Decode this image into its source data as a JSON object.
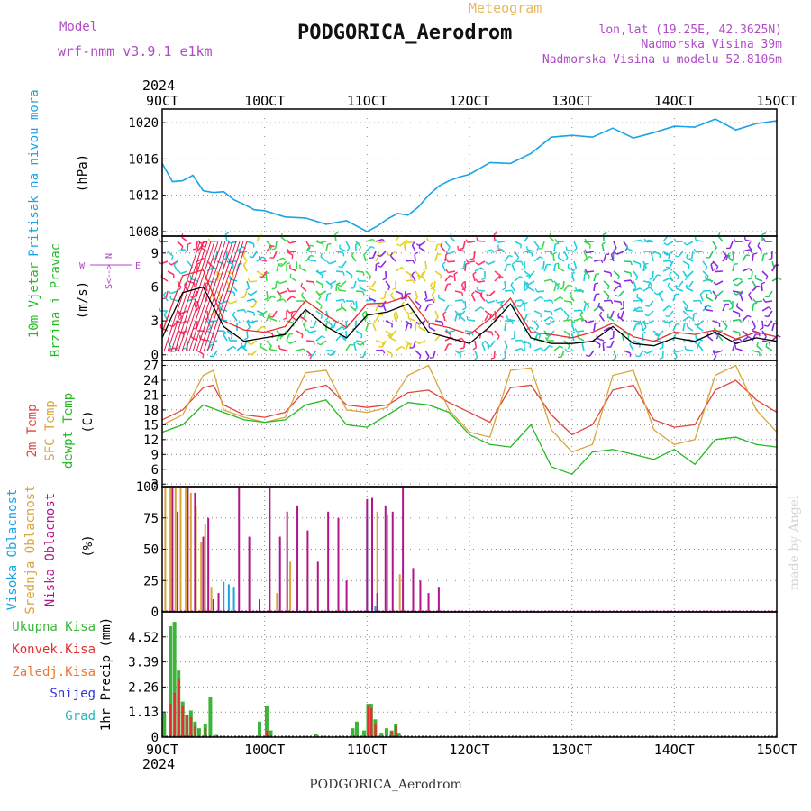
{
  "header": {
    "model_label": "Model",
    "model_name": "wrf-nmm_v3.9.1 e1km",
    "meteogram_label": "Meteogram",
    "station": "PODGORICA_Aerodrom",
    "lonlat": "lon,lat (19.25E, 42.3625N)",
    "altitude": "Nadmorska Visina 39m",
    "model_altitude": "Nadmorska Visina u modelu 52.8106m",
    "footer_station": "PODGORICA_Aerodrom",
    "credit": "made by Angel"
  },
  "time_axis": {
    "year": "2024",
    "labels": [
      "9OCT",
      "10OCT",
      "11OCT",
      "12OCT",
      "13OCT",
      "14OCT",
      "15OCT"
    ],
    "start_day": 9,
    "end_day": 15
  },
  "colors": {
    "pressure": "#1aa3e6",
    "wind_speed": "#000000",
    "wind_gust": "#e33030",
    "temp_2m": "#e0443c",
    "temp_sfc": "#d9a43a",
    "dewpoint": "#22bb22",
    "cloud_high": "#1aa3e6",
    "cloud_mid": "#d9a43a",
    "cloud_low": "#b0168a",
    "precip_total": "#3cb43c",
    "precip_conv": "#e33030",
    "precip_snow_label": "#3333dd",
    "precip_hail_label": "#22bbbb",
    "precip_frz_label": "#ee7733",
    "header_purple": "#b04ac8",
    "header_orange": "#e8b860",
    "grid": "#888888"
  },
  "chart_data": [
    {
      "type": "line",
      "panel": "pressure",
      "ylabel_side": "Pritisak na nivou mora",
      "unit": "(hPa)",
      "ylim": [
        1007.5,
        1021.5
      ],
      "yticks": [
        1008,
        1012,
        1016,
        1020
      ],
      "grid": true,
      "series": [
        {
          "x": [
            9.0,
            9.1,
            9.2,
            9.3,
            9.4,
            9.5,
            9.6,
            9.7,
            9.8,
            9.9,
            10.0,
            10.2,
            10.4,
            10.6,
            10.8,
            11.0,
            11.1,
            11.2,
            11.3,
            11.4,
            11.5,
            11.6,
            11.7,
            11.8,
            11.9,
            12.0,
            12.2,
            12.4,
            12.6,
            12.8,
            13.0,
            13.2,
            13.4,
            13.6,
            13.8,
            14.0,
            14.2,
            14.4,
            14.6,
            14.8,
            15.0
          ],
          "values": [
            1015.5,
            1013.5,
            1013.6,
            1014.2,
            1012.5,
            1012.3,
            1012.4,
            1011.5,
            1011.0,
            1010.4,
            1010.3,
            1009.6,
            1009.5,
            1008.8,
            1009.2,
            1008.0,
            1008.6,
            1009.4,
            1010.0,
            1009.8,
            1010.7,
            1012.0,
            1013.0,
            1013.6,
            1014.0,
            1014.3,
            1015.6,
            1015.5,
            1016.6,
            1018.4,
            1018.6,
            1018.4,
            1019.4,
            1018.3,
            1018.9,
            1019.6,
            1019.5,
            1020.4,
            1019.2,
            1019.9,
            1020.2
          ]
        }
      ]
    },
    {
      "type": "line",
      "panel": "wind",
      "ylabel_side": [
        "10m Vjetar",
        "Brzina i Pravac"
      ],
      "unit": "(m/s)",
      "ylim": [
        -0.5,
        10.5
      ],
      "yticks": [
        0,
        3,
        6,
        9
      ],
      "compass": [
        "N",
        "S",
        "W",
        "E"
      ],
      "grid": true,
      "series": [
        {
          "x": [
            9.0,
            9.2,
            9.4,
            9.6,
            9.8,
            10.0,
            10.2,
            10.4,
            10.6,
            10.8,
            11.0,
            11.2,
            11.4,
            11.6,
            11.8,
            12.0,
            12.2,
            12.4,
            12.6,
            12.8,
            13.0,
            13.2,
            13.4,
            13.6,
            13.8,
            14.0,
            14.2,
            14.4,
            14.6,
            14.8,
            15.0
          ],
          "values": [
            1.5,
            5.5,
            6.0,
            2.5,
            1.2,
            1.5,
            1.8,
            4.0,
            2.5,
            1.5,
            3.5,
            3.8,
            4.5,
            2.0,
            1.5,
            1.0,
            2.5,
            4.5,
            1.5,
            1.0,
            1.0,
            1.2,
            2.5,
            1.0,
            0.8,
            1.5,
            1.2,
            2.0,
            1.0,
            1.5,
            1.2
          ]
        },
        {
          "x": [
            9.0,
            9.2,
            9.4,
            9.6,
            9.8,
            10.0,
            10.2,
            10.4,
            10.6,
            10.8,
            11.0,
            11.2,
            11.4,
            11.6,
            11.8,
            12.0,
            12.2,
            12.4,
            12.6,
            12.8,
            13.0,
            13.2,
            13.4,
            13.6,
            13.8,
            14.0,
            14.2,
            14.4,
            14.6,
            14.8,
            15.0
          ],
          "values": [
            2.0,
            7.0,
            7.5,
            3.0,
            2.2,
            2.0,
            2.5,
            4.8,
            3.5,
            2.4,
            4.5,
            4.6,
            5.2,
            2.8,
            2.4,
            1.8,
            3.2,
            5.0,
            2.0,
            1.8,
            1.5,
            2.0,
            2.8,
            1.6,
            1.2,
            2.0,
            1.8,
            2.2,
            1.4,
            2.0,
            1.6
          ]
        }
      ]
    },
    {
      "type": "line",
      "panel": "temperature",
      "ylabel_side": [
        "2m Temp",
        "SFC Temp",
        "dewpt Temp"
      ],
      "unit": "(C)",
      "ylim": [
        2.5,
        28
      ],
      "yticks": [
        3,
        6,
        9,
        12,
        15,
        18,
        21,
        24,
        27
      ],
      "grid": true,
      "series": [
        {
          "x": [
            9.0,
            9.2,
            9.4,
            9.5,
            9.6,
            9.8,
            10.0,
            10.2,
            10.4,
            10.6,
            10.8,
            11.0,
            11.2,
            11.4,
            11.6,
            11.8,
            12.0,
            12.2,
            12.4,
            12.6,
            12.8,
            13.0,
            13.2,
            13.4,
            13.6,
            13.8,
            14.0,
            14.2,
            14.4,
            14.6,
            14.8,
            15.0
          ],
          "values": [
            16,
            18,
            22.5,
            23,
            19,
            17,
            16.5,
            17.5,
            22,
            23,
            19,
            18.5,
            19,
            21.5,
            22,
            19.5,
            17.5,
            15.5,
            22.5,
            23,
            17,
            13,
            15,
            22,
            23,
            16,
            14.5,
            15,
            22,
            24,
            20,
            17.5
          ]
        },
        {
          "x": [
            9.0,
            9.2,
            9.4,
            9.5,
            9.6,
            9.8,
            10.0,
            10.2,
            10.4,
            10.6,
            10.8,
            11.0,
            11.2,
            11.4,
            11.6,
            11.8,
            12.0,
            12.2,
            12.4,
            12.6,
            12.8,
            13.0,
            13.2,
            13.4,
            13.6,
            13.8,
            14.0,
            14.2,
            14.4,
            14.6,
            14.8,
            15.0
          ],
          "values": [
            15,
            17,
            25,
            26,
            18,
            16.5,
            15.5,
            16.5,
            25.5,
            26,
            18,
            17.5,
            18.5,
            25,
            27,
            18,
            13.5,
            12.5,
            26,
            26.5,
            14,
            9.5,
            11,
            25,
            26,
            14,
            11,
            12,
            25,
            27,
            18,
            13.5
          ]
        },
        {
          "x": [
            9.0,
            9.2,
            9.4,
            9.6,
            9.8,
            10.0,
            10.2,
            10.4,
            10.6,
            10.8,
            11.0,
            11.2,
            11.4,
            11.6,
            11.8,
            12.0,
            12.2,
            12.4,
            12.6,
            12.8,
            13.0,
            13.2,
            13.4,
            13.6,
            13.8,
            14.0,
            14.2,
            14.4,
            14.6,
            14.8,
            15.0
          ],
          "values": [
            13.5,
            15,
            19,
            17.5,
            16,
            15.5,
            16,
            19,
            20,
            15,
            14.5,
            17,
            19.5,
            19,
            17.5,
            13,
            11,
            10.5,
            15,
            6.5,
            5,
            9.5,
            10,
            9,
            8,
            10,
            7,
            12,
            12.5,
            11,
            10.5
          ]
        }
      ]
    },
    {
      "type": "bar",
      "panel": "clouds",
      "ylabel_side": [
        "Visoka Oblacnost",
        "Srednja Oblacnost",
        "Niska Oblacnost"
      ],
      "unit": "(%)",
      "ylim": [
        0,
        100
      ],
      "yticks": [
        0,
        25,
        50,
        75,
        100
      ],
      "grid": true,
      "series": [
        {
          "x": [
            9.6,
            9.65,
            9.7,
            11.0,
            11.08
          ],
          "values": [
            24,
            22,
            20,
            74,
            5
          ]
        },
        {
          "x": [
            9.03,
            9.08,
            9.13,
            9.18,
            9.23,
            9.28,
            9.33,
            9.38,
            9.42,
            9.48,
            10.12,
            10.25,
            11.1,
            11.2,
            11.32
          ],
          "values": [
            99,
            100,
            100,
            100,
            99,
            95,
            85,
            56,
            70,
            20,
            15,
            40,
            80,
            78,
            30
          ]
        },
        {
          "x": [
            9.1,
            9.15,
            9.25,
            9.32,
            9.4,
            9.45,
            9.5,
            9.55,
            9.75,
            9.85,
            9.95,
            10.05,
            10.15,
            10.22,
            10.32,
            10.42,
            10.52,
            10.62,
            10.72,
            10.8,
            11.0,
            11.05,
            11.1,
            11.18,
            11.25,
            11.35,
            11.45,
            11.52,
            11.6,
            11.7
          ],
          "values": [
            100,
            80,
            100,
            95,
            60,
            75,
            10,
            15,
            100,
            60,
            10,
            100,
            60,
            80,
            85,
            65,
            40,
            80,
            75,
            25,
            90,
            91,
            15,
            85,
            80,
            100,
            35,
            25,
            15,
            20
          ]
        }
      ]
    },
    {
      "type": "bar",
      "panel": "precip",
      "ylabel_side": [
        "Ukupna Kisa",
        "Konvek.Kisa",
        "Zaledj.Kisa",
        "Snijeg",
        "Grad"
      ],
      "ylabel": "1hr Precip (mm)",
      "ylim": [
        0,
        5.65
      ],
      "yticks": [
        0,
        1.13,
        2.26,
        3.39,
        4.52
      ],
      "grid": true,
      "series": [
        {
          "name": "Ukupna Kisa",
          "x": [
            9.02,
            9.08,
            9.12,
            9.16,
            9.2,
            9.24,
            9.28,
            9.32,
            9.36,
            9.42,
            9.47,
            9.53,
            9.95,
            10.02,
            10.06,
            10.5,
            10.86,
            10.9,
            10.97,
            11.01,
            11.04,
            11.08,
            11.14,
            11.19,
            11.24,
            11.28,
            11.31
          ],
          "values": [
            1.1,
            5.0,
            5.2,
            3.0,
            1.6,
            1.0,
            1.2,
            0.7,
            0.4,
            0.6,
            1.8,
            0.1,
            0.7,
            1.4,
            0.3,
            0.15,
            0.4,
            0.7,
            0.3,
            1.5,
            1.5,
            0.8,
            0.2,
            0.4,
            0.3,
            0.6,
            0.2
          ]
        },
        {
          "name": "Konvek.Kisa",
          "x": [
            9.08,
            9.12,
            9.16,
            9.2,
            9.24,
            9.28,
            9.32,
            9.42,
            10.02,
            11.01,
            11.04,
            11.08,
            11.24,
            11.28
          ],
          "values": [
            1.5,
            2.0,
            2.6,
            1.4,
            1.0,
            0.9,
            0.5,
            0.4,
            0.3,
            1.4,
            1.3,
            0.6,
            0.25,
            0.5
          ]
        }
      ]
    }
  ]
}
